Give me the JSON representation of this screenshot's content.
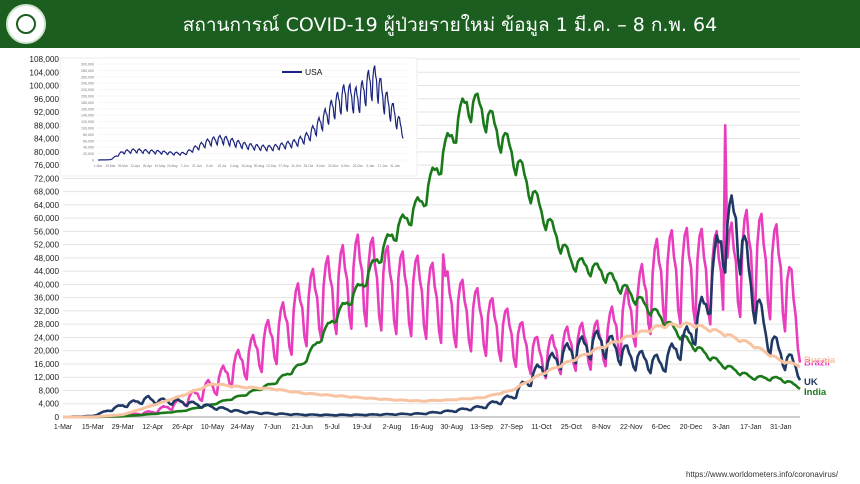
{
  "header": {
    "title": "สถานการณ์ COVID-19 ผู้ป่วยรายใหม่ ข้อมูล 1 มี.ค. – 8 ก.พ. 64",
    "logo_icon": "ministry-seal-icon",
    "bg_color": "#1b5e20"
  },
  "source": "https://www.worldometers.info/coronavirus/",
  "chart_data": [
    {
      "type": "line",
      "ylim": [
        0,
        108000
      ],
      "yticks": [
        0,
        4000,
        8000,
        12000,
        16000,
        20000,
        24000,
        28000,
        32000,
        36000,
        40000,
        44000,
        48000,
        52000,
        56000,
        60000,
        64000,
        68000,
        72000,
        76000,
        80000,
        84000,
        88000,
        92000,
        96000,
        100000,
        104000,
        108000
      ],
      "ytick_labels": [
        "0",
        "4,000",
        "8,000",
        "12,000",
        "16,000",
        "20,000",
        "24,000",
        "28,000",
        "32,000",
        "36,000",
        "40,000",
        "44,000",
        "48,000",
        "52,000",
        "56,000",
        "60,000",
        "64,000",
        "68,000",
        "72,000",
        "76,000",
        "80,000",
        "84,000",
        "88,000",
        "92,000",
        "96,000",
        "100,000",
        "104,000",
        "108,000"
      ],
      "xlim": [
        0,
        345
      ],
      "x_tick_positions": [
        0,
        14,
        28,
        42,
        56,
        70,
        84,
        98,
        112,
        126,
        140,
        154,
        168,
        182,
        196,
        210,
        224,
        238,
        252,
        266,
        280,
        294,
        308,
        322,
        336
      ],
      "x_tick_labels": [
        "1-Mar",
        "15-Mar",
        "29-Mar",
        "12-Apr",
        "26-Apr",
        "10-May",
        "24-May",
        "7-Jun",
        "21-Jun",
        "5-Jul",
        "19-Jul",
        "2-Aug",
        "16-Aug",
        "30-Aug",
        "13-Sep",
        "27-Sep",
        "11-Oct",
        "25-Oct",
        "8-Nov",
        "22-Nov",
        "6-Dec",
        "20-Dec",
        "3-Jan",
        "17-Jan",
        "31-Jan"
      ],
      "grid": true,
      "series": [
        {
          "name": "Brazil",
          "color": "#e83ebd",
          "weekly_amp": 0.32,
          "anchors": [
            [
              0,
              0
            ],
            [
              14,
              20
            ],
            [
              28,
              400
            ],
            [
              42,
              1500
            ],
            [
              56,
              4500
            ],
            [
              70,
              9500
            ],
            [
              84,
              17000
            ],
            [
              98,
              24000
            ],
            [
              112,
              33000
            ],
            [
              126,
              39000
            ],
            [
              140,
              44000
            ],
            [
              154,
              40000
            ],
            [
              168,
              38000
            ],
            [
              182,
              34000
            ],
            [
              196,
              30000
            ],
            [
              210,
              25000
            ],
            [
              224,
              18000
            ],
            [
              238,
              22000
            ],
            [
              252,
              23000
            ],
            [
              266,
              32000
            ],
            [
              280,
              44000
            ],
            [
              294,
              45000
            ],
            [
              308,
              44000
            ],
            [
              322,
              50000
            ],
            [
              336,
              45000
            ],
            [
              341,
              35000
            ],
            [
              345,
              26000
            ]
          ],
          "spikes": [
            [
              310,
              88000
            ],
            [
              178,
              49000
            ],
            [
              262,
              32000
            ]
          ]
        },
        {
          "name": "India",
          "color": "#1a7a1a",
          "weekly_amp": 0.05,
          "anchors": [
            [
              0,
              0
            ],
            [
              14,
              20
            ],
            [
              28,
              200
            ],
            [
              42,
              900
            ],
            [
              56,
              1800
            ],
            [
              70,
              3800
            ],
            [
              84,
              6500
            ],
            [
              98,
              10000
            ],
            [
              112,
              16000
            ],
            [
              126,
              29000
            ],
            [
              140,
              40000
            ],
            [
              154,
              55000
            ],
            [
              168,
              65000
            ],
            [
              182,
              85000
            ],
            [
              189,
              95000
            ],
            [
              196,
              93000
            ],
            [
              210,
              80000
            ],
            [
              224,
              62000
            ],
            [
              238,
              47000
            ],
            [
              252,
              44000
            ],
            [
              266,
              37000
            ],
            [
              280,
              30000
            ],
            [
              294,
              22000
            ],
            [
              308,
              16000
            ],
            [
              322,
              12000
            ],
            [
              336,
              11500
            ],
            [
              345,
              9000
            ]
          ]
        },
        {
          "name": "UK",
          "color": "#1f3864",
          "weekly_amp": 0.18,
          "anchors": [
            [
              0,
              0
            ],
            [
              14,
              300
            ],
            [
              28,
              3500
            ],
            [
              40,
              5500
            ],
            [
              42,
              5000
            ],
            [
              56,
              4500
            ],
            [
              70,
              3000
            ],
            [
              84,
              1500
            ],
            [
              98,
              1000
            ],
            [
              112,
              700
            ],
            [
              126,
              600
            ],
            [
              140,
              650
            ],
            [
              154,
              800
            ],
            [
              168,
              1000
            ],
            [
              182,
              1800
            ],
            [
              196,
              3000
            ],
            [
              210,
              6000
            ],
            [
              224,
              15000
            ],
            [
              238,
              20000
            ],
            [
              252,
              23000
            ],
            [
              266,
              18000
            ],
            [
              280,
              16000
            ],
            [
              294,
              25000
            ],
            [
              301,
              34000
            ],
            [
              308,
              53000
            ],
            [
              315,
              60000
            ],
            [
              322,
              40000
            ],
            [
              329,
              25000
            ],
            [
              336,
              19000
            ],
            [
              345,
              14000
            ]
          ]
        },
        {
          "name": "Russia",
          "color": "#f8c3a0",
          "weekly_amp": 0.02,
          "anchors": [
            [
              0,
              0
            ],
            [
              14,
              20
            ],
            [
              28,
              700
            ],
            [
              42,
              3500
            ],
            [
              56,
              6500
            ],
            [
              70,
              10000
            ],
            [
              84,
              9000
            ],
            [
              98,
              8500
            ],
            [
              112,
              7200
            ],
            [
              126,
              6500
            ],
            [
              140,
              5800
            ],
            [
              154,
              5200
            ],
            [
              168,
              4800
            ],
            [
              182,
              5200
            ],
            [
              196,
              5800
            ],
            [
              210,
              8000
            ],
            [
              224,
              13000
            ],
            [
              238,
              17000
            ],
            [
              252,
              21000
            ],
            [
              266,
              24500
            ],
            [
              280,
              27500
            ],
            [
              294,
              28000
            ],
            [
              308,
              25500
            ],
            [
              322,
              22000
            ],
            [
              336,
              17000
            ],
            [
              345,
              15500
            ]
          ]
        }
      ]
    },
    {
      "type": "line",
      "ylim": [
        0,
        300000
      ],
      "ytick_labels": [
        "0",
        "20,000",
        "40,000",
        "60,000",
        "80,000",
        "100,000",
        "120,000",
        "140,000",
        "160,000",
        "180,000",
        "200,000",
        "220,000",
        "240,000",
        "260,000",
        "280,000",
        "300,000"
      ],
      "x_tick_labels": [
        "1-Mar",
        "15-Mar",
        "29-Mar",
        "12-Apr",
        "26-Apr",
        "10-May",
        "24-May",
        "7-Jun",
        "21-Jun",
        "5-Jul",
        "19-Jul",
        "2-Aug",
        "16-Aug",
        "30-Aug",
        "13-Sep",
        "27-Sep",
        "11-Oct",
        "25-Oct",
        "8-Nov",
        "22-Nov",
        "6-Dec",
        "20-Dec",
        "3-Jan",
        "17-Jan",
        "31-Jan"
      ],
      "xlim": [
        0,
        345
      ],
      "series": [
        {
          "name": "USA",
          "color": "#1a237e",
          "weekly_amp": 0.22,
          "anchors": [
            [
              0,
              0
            ],
            [
              14,
              800
            ],
            [
              28,
              25000
            ],
            [
              42,
              30000
            ],
            [
              56,
              27000
            ],
            [
              70,
              25000
            ],
            [
              84,
              21000
            ],
            [
              98,
              20000
            ],
            [
              112,
              40000
            ],
            [
              126,
              58000
            ],
            [
              140,
              66000
            ],
            [
              154,
              55000
            ],
            [
              168,
              45000
            ],
            [
              182,
              40000
            ],
            [
              196,
              38000
            ],
            [
              210,
              46000
            ],
            [
              224,
              55000
            ],
            [
              238,
              75000
            ],
            [
              252,
              118000
            ],
            [
              266,
              165000
            ],
            [
              280,
              205000
            ],
            [
              294,
              190000
            ],
            [
              308,
              245000
            ],
            [
              315,
              250000
            ],
            [
              322,
              200000
            ],
            [
              336,
              140000
            ],
            [
              345,
              90000
            ]
          ]
        }
      ]
    }
  ]
}
